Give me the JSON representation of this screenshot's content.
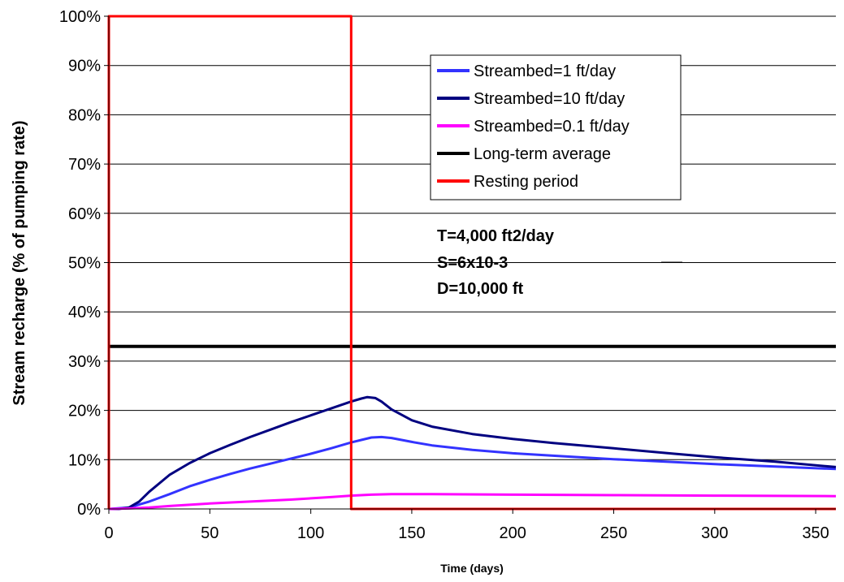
{
  "chart_data": {
    "type": "line",
    "title": "",
    "xlabel": "Time  (days)",
    "ylabel": "Stream recharge (% of pumping rate)",
    "xlim": [
      0,
      360
    ],
    "ylim": [
      0,
      100
    ],
    "x_ticks": [
      "0",
      "50",
      "100",
      "150",
      "200",
      "250",
      "300",
      "350"
    ],
    "x_tick_values": [
      0,
      50,
      100,
      150,
      200,
      250,
      300,
      350
    ],
    "y_ticks": [
      "0%",
      "10%",
      "20%",
      "30%",
      "40%",
      "50%",
      "60%",
      "70%",
      "80%",
      "90%",
      "100%"
    ],
    "y_tick_values": [
      0,
      10,
      20,
      30,
      40,
      50,
      60,
      70,
      80,
      90,
      100
    ],
    "grid": "horizontal",
    "legend_position": "top-right",
    "series": [
      {
        "name": "Streambed=1 ft/day",
        "color": "#3333ff",
        "x": [
          0,
          10,
          20,
          30,
          40,
          50,
          60,
          70,
          80,
          90,
          100,
          110,
          120,
          125,
          130,
          135,
          140,
          150,
          160,
          180,
          200,
          220,
          250,
          280,
          300,
          330,
          360
        ],
        "y": [
          0,
          0.3,
          1.5,
          3.0,
          4.6,
          5.9,
          7.1,
          8.2,
          9.2,
          10.2,
          11.2,
          12.3,
          13.5,
          14.0,
          14.5,
          14.6,
          14.4,
          13.6,
          12.9,
          12.0,
          11.3,
          10.8,
          10.1,
          9.5,
          9.1,
          8.6,
          8.1
        ]
      },
      {
        "name": "Streambed=10 ft/day",
        "color": "#000080",
        "x": [
          0,
          5,
          10,
          15,
          20,
          30,
          40,
          50,
          60,
          70,
          80,
          90,
          100,
          110,
          120,
          125,
          128,
          132,
          135,
          140,
          150,
          160,
          180,
          200,
          220,
          250,
          280,
          300,
          330,
          360
        ],
        "y": [
          0,
          0,
          0.3,
          1.5,
          3.5,
          6.9,
          9.3,
          11.3,
          13.0,
          14.6,
          16.1,
          17.6,
          19.0,
          20.4,
          21.8,
          22.4,
          22.7,
          22.5,
          21.8,
          20.2,
          18.0,
          16.7,
          15.2,
          14.2,
          13.4,
          12.3,
          11.2,
          10.5,
          9.6,
          8.5
        ]
      },
      {
        "name": "Streambed=0.1 ft/day",
        "color": "#ff00ff",
        "x": [
          0,
          10,
          20,
          30,
          50,
          70,
          90,
          110,
          120,
          130,
          140,
          160,
          200,
          250,
          300,
          360
        ],
        "y": [
          0,
          0.1,
          0.3,
          0.6,
          1.1,
          1.5,
          1.9,
          2.4,
          2.7,
          2.9,
          3.0,
          3.0,
          2.9,
          2.8,
          2.7,
          2.6
        ]
      },
      {
        "name": "Long-term average",
        "color": "#000000",
        "x": [
          0,
          360
        ],
        "y": [
          33,
          33
        ]
      },
      {
        "name": "Resting period",
        "color": "#ff0000",
        "x": [
          0,
          0,
          120,
          120,
          360
        ],
        "y": [
          0,
          100,
          100,
          0,
          0
        ]
      }
    ],
    "annotations": [
      "T=4,000 ft2/day",
      "S=6x10-3",
      "D=10,000 ft"
    ]
  }
}
